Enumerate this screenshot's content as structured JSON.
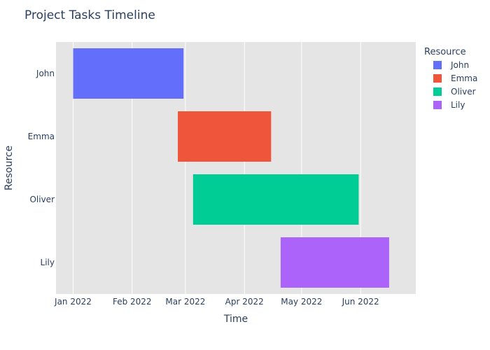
{
  "chart_data": {
    "type": "bar",
    "subtype": "gantt",
    "title": "Project Tasks Timeline",
    "xlabel": "Time",
    "ylabel": "Resource",
    "x_ticks": [
      "Jan 2022",
      "Feb 2022",
      "Mar 2022",
      "Apr 2022",
      "May 2022",
      "Jun 2022"
    ],
    "xlim": [
      "2021-12-23",
      "2022-06-30"
    ],
    "grid": true,
    "legend": {
      "title": "Resource",
      "placement": "right"
    },
    "tasks": [
      {
        "resource": "John",
        "start": "2022-01-01",
        "end": "2022-02-28",
        "color": "#636efa"
      },
      {
        "resource": "Emma",
        "start": "2022-02-25",
        "end": "2022-04-15",
        "color": "#ef553b"
      },
      {
        "resource": "Oliver",
        "start": "2022-03-05",
        "end": "2022-05-31",
        "color": "#00cc96"
      },
      {
        "resource": "Lily",
        "start": "2022-04-20",
        "end": "2022-06-16",
        "color": "#ab63fa"
      }
    ]
  }
}
